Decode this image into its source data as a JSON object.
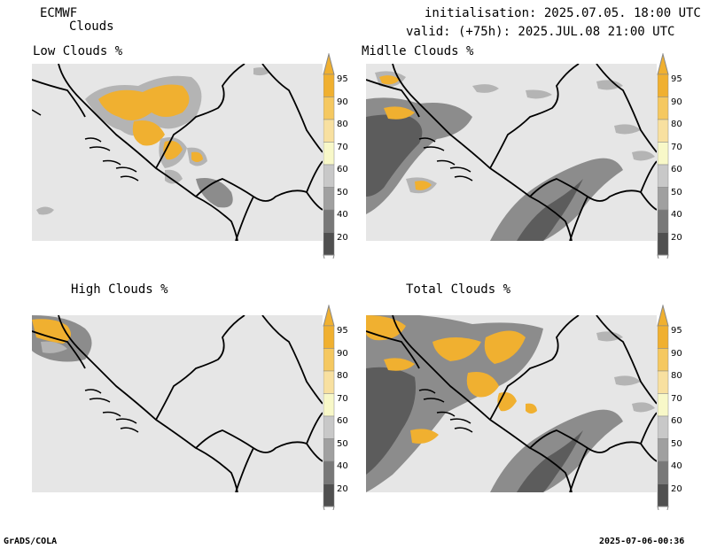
{
  "header": {
    "model": "ECMWF",
    "product": "Clouds",
    "init_line": "initialisation: 2025.07.05. 18:00 UTC",
    "valid_line": "valid: (+75h): 2025.JUL.08 21:00 UTC"
  },
  "panels": [
    {
      "title": "Low Clouds %"
    },
    {
      "title": "Midlle Clouds %"
    },
    {
      "title": "High Clouds %"
    },
    {
      "title": "Total Clouds %"
    }
  ],
  "colorbar": {
    "labels": [
      "95",
      "90",
      "80",
      "70",
      "60",
      "50",
      "40",
      "20"
    ],
    "colors": [
      "#f0b030",
      "#f5c860",
      "#f8e0a0",
      "#f8f8c8",
      "#c8c8c8",
      "#a0a0a0",
      "#787878",
      "#505050"
    ]
  },
  "colors": {
    "background": "#e6e6e6",
    "cloud_light": "#b4b4b4",
    "cloud_mid": "#8c8c8c",
    "cloud_dark": "#5c5c5c",
    "cloud_high": "#f0b030",
    "border": "#000000"
  },
  "footer": {
    "left": "GrADS/COLA",
    "right": "2025-07-06-00:36"
  }
}
